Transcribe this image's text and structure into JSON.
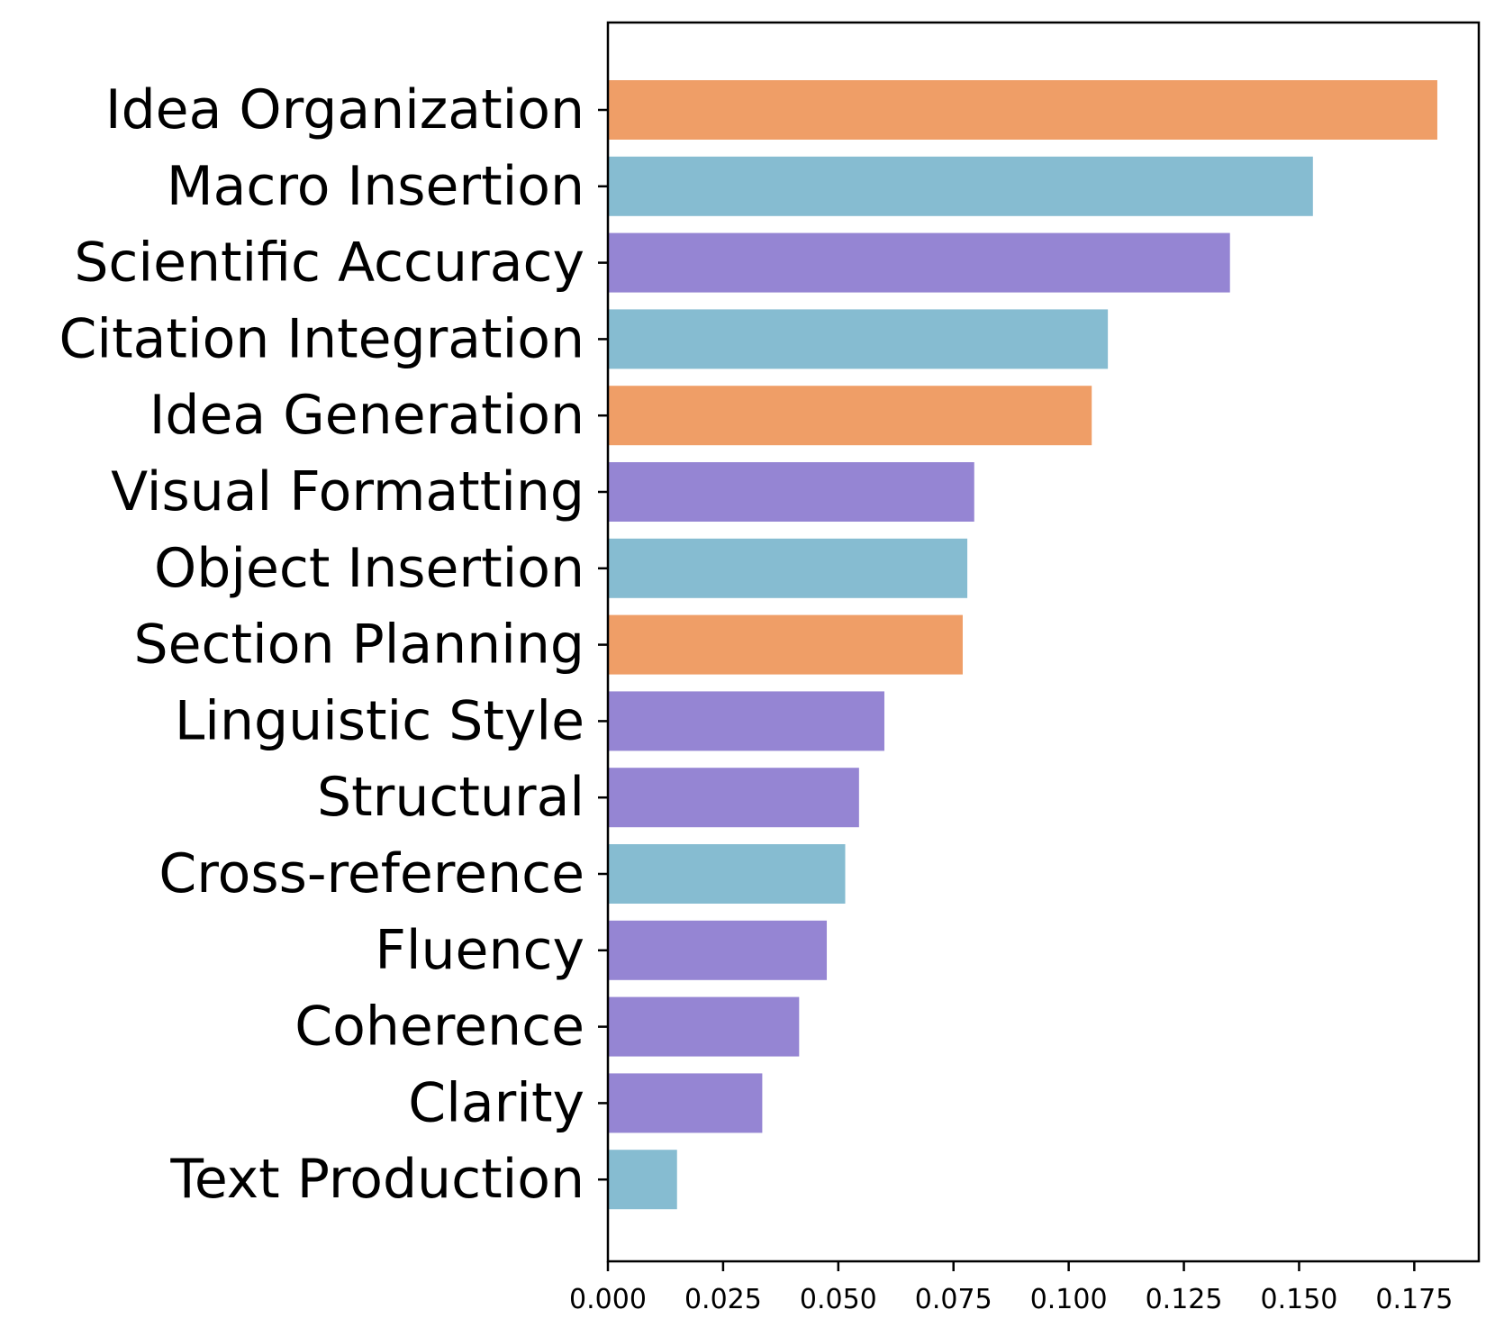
{
  "chart_data": {
    "type": "bar",
    "orientation": "horizontal",
    "title": "",
    "xlabel": "",
    "ylabel": "",
    "categories": [
      "Idea Organization",
      "Macro Insertion",
      "Scientific Accuracy",
      "Citation Integration",
      "Idea Generation",
      "Visual Formatting",
      "Object Insertion",
      "Section Planning",
      "Linguistic Style",
      "Structural",
      "Cross-reference",
      "Fluency",
      "Coherence",
      "Clarity",
      "Text Production"
    ],
    "values": [
      0.18,
      0.153,
      0.135,
      0.1085,
      0.105,
      0.0795,
      0.078,
      0.077,
      0.06,
      0.0545,
      0.0515,
      0.0475,
      0.0415,
      0.0335,
      0.015
    ],
    "bar_colors": [
      "#ef9e67",
      "#86bcd1",
      "#9585d3",
      "#86bcd1",
      "#ef9e67",
      "#9585d3",
      "#86bcd1",
      "#ef9e67",
      "#9585d3",
      "#9585d3",
      "#86bcd1",
      "#9585d3",
      "#9585d3",
      "#9585d3",
      "#86bcd1"
    ],
    "xlim": [
      0,
      0.189
    ],
    "xticks": [
      0.0,
      0.025,
      0.05,
      0.075,
      0.1,
      0.125,
      0.15,
      0.175
    ],
    "xtick_labels": [
      "0.000",
      "0.025",
      "0.050",
      "0.075",
      "0.100",
      "0.125",
      "0.150",
      "0.175"
    ],
    "grid": false,
    "legend": "none"
  }
}
